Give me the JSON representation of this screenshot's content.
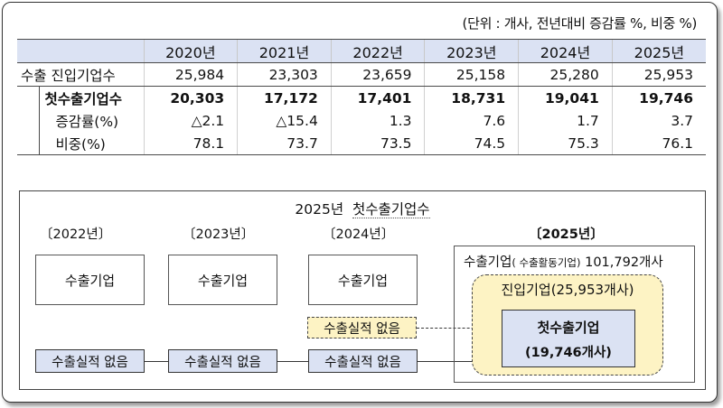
{
  "unit_note": "(단위 : 개사, 전년대비 증감률 %, 비중 %)",
  "table": {
    "years": [
      "2020년",
      "2021년",
      "2022년",
      "2023년",
      "2024년",
      "2025년"
    ],
    "rows": [
      {
        "label": "수출 진입기업수",
        "values": [
          "25,984",
          "23,303",
          "23,659",
          "25,158",
          "25,280",
          "25,953"
        ]
      },
      {
        "label": "첫수출기업수",
        "values": [
          "20,303",
          "17,172",
          "17,401",
          "18,731",
          "19,041",
          "19,746"
        ]
      },
      {
        "label": "증감률(%)",
        "values": [
          "△2.1",
          "△15.4",
          "1.3",
          "7.6",
          "1.7",
          "3.7"
        ]
      },
      {
        "label": "비중(%)",
        "values": [
          "78.1",
          "73.7",
          "73.5",
          "74.5",
          "75.3",
          "76.1"
        ]
      }
    ]
  },
  "diagram": {
    "title_prefix": "2025년",
    "title_main": "첫수출기업수",
    "year_labels": [
      "〔2022년〕",
      "〔2023년〕",
      "〔2024년〕",
      "〔2025년〕"
    ],
    "exporter": "수출기업",
    "no_record": "수출실적 없음",
    "outer_label_main": "수출기업",
    "outer_label_small": "( 수출활동기업)",
    "outer_label_count": "101,792개사",
    "new_label": "진입기업(25,953개사)",
    "first_name": "첫수출기업",
    "first_count": "(19,746개사)"
  }
}
